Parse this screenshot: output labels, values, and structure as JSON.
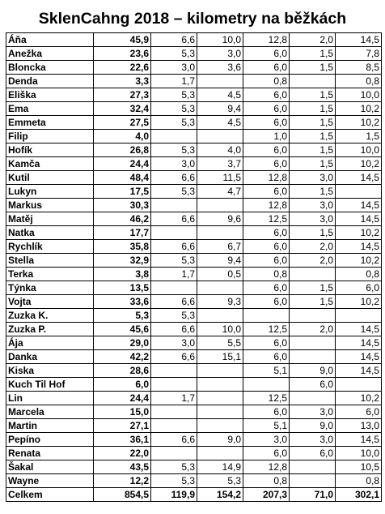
{
  "title": "SklenCahng 2018 – kilometry na běžkách",
  "rows": [
    {
      "name": "Áňa",
      "total": "45,9",
      "c1": "6,6",
      "c2": "10,0",
      "c3": "12,8",
      "c4": "2,0",
      "c5": "14,5"
    },
    {
      "name": "Anežka",
      "total": "23,6",
      "c1": "5,3",
      "c2": "3,0",
      "c3": "6,0",
      "c4": "1,5",
      "c5": "7,8"
    },
    {
      "name": "Bloncka",
      "total": "22,6",
      "c1": "3,0",
      "c2": "3,6",
      "c3": "6,0",
      "c4": "1,5",
      "c5": "8,5"
    },
    {
      "name": "Denda",
      "total": "3,3",
      "c1": "1,7",
      "c2": "",
      "c3": "0,8",
      "c4": "",
      "c5": "0,8"
    },
    {
      "name": "Eliška",
      "total": "27,3",
      "c1": "5,3",
      "c2": "4,5",
      "c3": "6,0",
      "c4": "1,5",
      "c5": "10,0"
    },
    {
      "name": "Ema",
      "total": "32,4",
      "c1": "5,3",
      "c2": "9,4",
      "c3": "6,0",
      "c4": "1,5",
      "c5": "10,2"
    },
    {
      "name": "Emmeta",
      "total": "27,5",
      "c1": "5,3",
      "c2": "4,5",
      "c3": "6,0",
      "c4": "1,5",
      "c5": "10,2"
    },
    {
      "name": "Filip",
      "total": "4,0",
      "c1": "",
      "c2": "",
      "c3": "1,0",
      "c4": "1,5",
      "c5": "1,5"
    },
    {
      "name": "Hofík",
      "total": "26,8",
      "c1": "5,3",
      "c2": "4,0",
      "c3": "6,0",
      "c4": "1,5",
      "c5": "10,0"
    },
    {
      "name": "Kamča",
      "total": "24,4",
      "c1": "3,0",
      "c2": "3,7",
      "c3": "6,0",
      "c4": "1,5",
      "c5": "10,2"
    },
    {
      "name": "Kutil",
      "total": "48,4",
      "c1": "6,6",
      "c2": "11,5",
      "c3": "12,8",
      "c4": "3,0",
      "c5": "14,5"
    },
    {
      "name": "Lukyn",
      "total": "17,5",
      "c1": "5,3",
      "c2": "4,7",
      "c3": "6,0",
      "c4": "1,5",
      "c5": ""
    },
    {
      "name": "Markus",
      "total": "30,3",
      "c1": "",
      "c2": "",
      "c3": "12,8",
      "c4": "3,0",
      "c5": "14,5"
    },
    {
      "name": "Matěj",
      "total": "46,2",
      "c1": "6,6",
      "c2": "9,6",
      "c3": "12,5",
      "c4": "3,0",
      "c5": "14,5"
    },
    {
      "name": "Natka",
      "total": "17,7",
      "c1": "",
      "c2": "",
      "c3": "6,0",
      "c4": "1,5",
      "c5": "10,2"
    },
    {
      "name": "Rychlík",
      "total": "35,8",
      "c1": "6,6",
      "c2": "6,7",
      "c3": "6,0",
      "c4": "2,0",
      "c5": "14,5"
    },
    {
      "name": "Stella",
      "total": "32,9",
      "c1": "5,3",
      "c2": "9,4",
      "c3": "6,0",
      "c4": "2,0",
      "c5": "10,2"
    },
    {
      "name": "Terka",
      "total": "3,8",
      "c1": "1,7",
      "c2": "0,5",
      "c3": "0,8",
      "c4": "",
      "c5": "0,8"
    },
    {
      "name": "Týnka",
      "total": "13,5",
      "c1": "",
      "c2": "",
      "c3": "6,0",
      "c4": "1,5",
      "c5": "6,0"
    },
    {
      "name": "Vojta",
      "total": "33,6",
      "c1": "6,6",
      "c2": "9,3",
      "c3": "6,0",
      "c4": "1,5",
      "c5": "10,2"
    },
    {
      "name": "Zuzka K.",
      "total": "5,3",
      "c1": "5,3",
      "c2": "",
      "c3": "",
      "c4": "",
      "c5": ""
    },
    {
      "name": "Zuzka P.",
      "total": "45,6",
      "c1": "6,6",
      "c2": "10,0",
      "c3": "12,5",
      "c4": "2,0",
      "c5": "14,5"
    },
    {
      "name": "Ája",
      "total": "29,0",
      "c1": "3,0",
      "c2": "5,5",
      "c3": "6,0",
      "c4": "",
      "c5": "14,5"
    },
    {
      "name": "Danka",
      "total": "42,2",
      "c1": "6,6",
      "c2": "15,1",
      "c3": "6,0",
      "c4": "",
      "c5": "14,5"
    },
    {
      "name": "Kiska",
      "total": "28,6",
      "c1": "",
      "c2": "",
      "c3": "5,1",
      "c4": "9,0",
      "c5": "14,5"
    },
    {
      "name": "Kuch Til Hof",
      "total": "6,0",
      "c1": "",
      "c2": "",
      "c3": "",
      "c4": "6,0",
      "c5": ""
    },
    {
      "name": "Lin",
      "total": "24,4",
      "c1": "1,7",
      "c2": "",
      "c3": "12,5",
      "c4": "",
      "c5": "10,2"
    },
    {
      "name": "Marcela",
      "total": "15,0",
      "c1": "",
      "c2": "",
      "c3": "6,0",
      "c4": "3,0",
      "c5": "6,0"
    },
    {
      "name": "Martin",
      "total": "27,1",
      "c1": "",
      "c2": "",
      "c3": "5,1",
      "c4": "9,0",
      "c5": "13,0"
    },
    {
      "name": "Pepíno",
      "total": "36,1",
      "c1": "6,6",
      "c2": "9,0",
      "c3": "3,0",
      "c4": "3,0",
      "c5": "14,5"
    },
    {
      "name": "Renata",
      "total": "22,0",
      "c1": "",
      "c2": "",
      "c3": "6,0",
      "c4": "6,0",
      "c5": "10,0"
    },
    {
      "name": "Šakal",
      "total": "43,5",
      "c1": "5,3",
      "c2": "14,9",
      "c3": "12,8",
      "c4": "",
      "c5": "10,5"
    },
    {
      "name": "Wayne",
      "total": "12,2",
      "c1": "5,3",
      "c2": "5,3",
      "c3": "0,8",
      "c4": "",
      "c5": "0,8"
    }
  ],
  "totals": {
    "name": "Celkem",
    "total": "854,5",
    "c1": "119,9",
    "c2": "154,2",
    "c3": "207,3",
    "c4": "71,0",
    "c5": "302,1"
  }
}
